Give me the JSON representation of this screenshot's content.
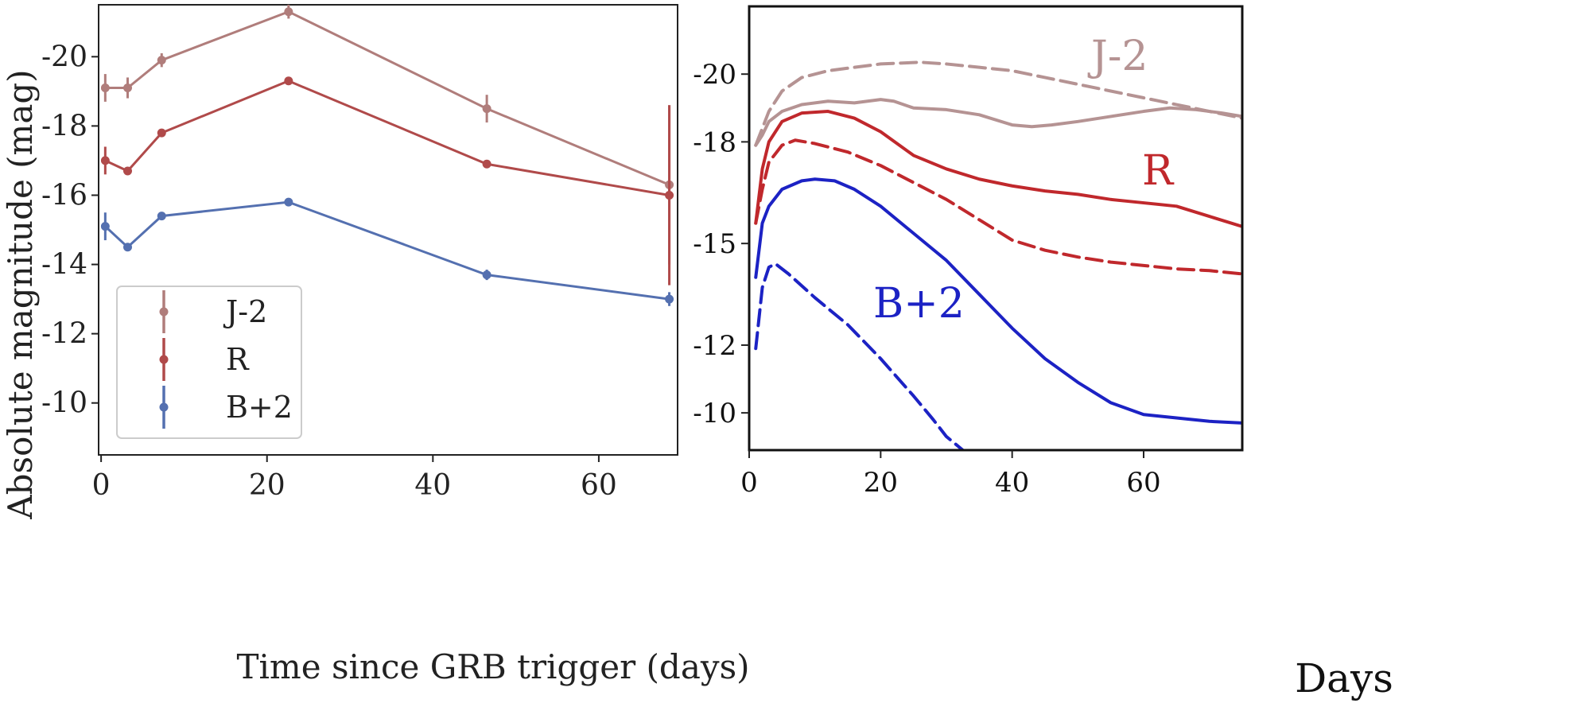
{
  "chart_data": [
    {
      "type": "line",
      "xlabel": "Time since GRB trigger (days)",
      "ylabel": "Absolute magnitude (mag)",
      "xlim": [
        -0.3,
        69.5
      ],
      "ylim": [
        -8.5,
        -21.5
      ],
      "y_inverted": true,
      "xticks": [
        0,
        20,
        40,
        60
      ],
      "yticks": [
        -10,
        -12,
        -14,
        -16,
        -18,
        -20
      ],
      "legend_position": "lower-left",
      "markers": true,
      "error_bars": true,
      "series": [
        {
          "name": "J-2",
          "color": "#b07d7b",
          "x": [
            0.5,
            3.2,
            7.3,
            22.6,
            46.5,
            68.5
          ],
          "y": [
            -19.1,
            -19.1,
            -19.9,
            -21.3,
            -18.5,
            -16.3
          ],
          "yerr": [
            0.4,
            0.3,
            0.2,
            0.2,
            0.4,
            2.3
          ]
        },
        {
          "name": "R",
          "color": "#b04a4a",
          "x": [
            0.5,
            3.2,
            7.3,
            22.6,
            46.5,
            68.5
          ],
          "y": [
            -17.0,
            -16.7,
            -17.8,
            -19.3,
            -16.9,
            -16.0
          ],
          "yerr": [
            0.4,
            0.1,
            0.1,
            0.1,
            0.1,
            2.6
          ]
        },
        {
          "name": "B+2",
          "color": "#5470b0",
          "x": [
            0.5,
            3.2,
            7.3,
            22.6,
            46.5,
            68.5
          ],
          "y": [
            -15.1,
            -14.5,
            -15.4,
            -15.8,
            -13.7,
            -13.0
          ],
          "yerr": [
            0.4,
            0.1,
            0.1,
            0.1,
            0.15,
            0.2
          ]
        }
      ]
    },
    {
      "type": "line",
      "xlabel": "Days",
      "ylabel": "",
      "xlim": [
        0,
        75
      ],
      "ylim": [
        -8.9,
        -22.0
      ],
      "y_inverted": true,
      "xticks": [
        0,
        20,
        40,
        60
      ],
      "ytick_values": [
        -20,
        -18,
        -15,
        -12,
        -10
      ],
      "ytick_labels": [
        "-20",
        "-18",
        "-15",
        "-12",
        "-10"
      ],
      "legend_position": "inline",
      "series": [
        {
          "name": "J-2",
          "label_shown": "J-2",
          "color": "#b59393",
          "style": "dashed",
          "x": [
            1,
            2,
            3,
            5,
            8,
            12,
            16,
            20,
            26,
            30,
            35,
            40,
            45,
            50,
            55,
            60,
            65,
            70,
            75
          ],
          "y": [
            -17.9,
            -18.4,
            -18.9,
            -19.5,
            -19.9,
            -20.1,
            -20.2,
            -20.3,
            -20.35,
            -20.3,
            -20.2,
            -20.1,
            -19.9,
            -19.7,
            -19.5,
            -19.3,
            -19.1,
            -18.9,
            -18.7
          ]
        },
        {
          "name": "J-2 solid",
          "color": "#b59393",
          "style": "solid",
          "x": [
            1,
            2,
            3,
            5,
            8,
            12,
            16,
            20,
            22,
            25,
            30,
            35,
            40,
            43,
            46,
            50,
            55,
            60,
            64,
            68,
            72,
            75
          ],
          "y": [
            -17.9,
            -18.2,
            -18.6,
            -18.9,
            -19.1,
            -19.2,
            -19.15,
            -19.25,
            -19.2,
            -19.0,
            -18.95,
            -18.8,
            -18.5,
            -18.45,
            -18.5,
            -18.6,
            -18.75,
            -18.9,
            -19.0,
            -18.95,
            -18.85,
            -18.75
          ]
        },
        {
          "name": "R",
          "label_shown": "R",
          "color": "#c0282c",
          "style": "solid",
          "x": [
            1,
            2,
            3,
            5,
            8,
            12,
            16,
            20,
            25,
            30,
            35,
            40,
            45,
            50,
            55,
            60,
            65,
            70,
            75
          ],
          "y": [
            -15.6,
            -17.2,
            -18.0,
            -18.6,
            -18.85,
            -18.9,
            -18.7,
            -18.3,
            -17.6,
            -17.2,
            -16.9,
            -16.7,
            -16.55,
            -16.45,
            -16.3,
            -16.2,
            -16.1,
            -15.8,
            -15.5
          ]
        },
        {
          "name": "R dashed",
          "color": "#c0282c",
          "style": "dashed",
          "x": [
            1,
            2,
            3,
            5,
            7,
            10,
            15,
            20,
            25,
            30,
            35,
            40,
            45,
            50,
            55,
            60,
            65,
            70,
            75
          ],
          "y": [
            -15.6,
            -16.6,
            -17.4,
            -17.9,
            -18.05,
            -17.95,
            -17.7,
            -17.3,
            -16.8,
            -16.3,
            -15.7,
            -15.1,
            -14.8,
            -14.6,
            -14.45,
            -14.35,
            -14.25,
            -14.2,
            -14.1
          ]
        },
        {
          "name": "B+2",
          "label_shown": "B+2",
          "color": "#1c22c4",
          "style": "solid",
          "x": [
            1,
            2,
            3,
            5,
            8,
            10,
            13,
            16,
            20,
            25,
            30,
            35,
            40,
            45,
            50,
            55,
            60,
            65,
            70,
            75
          ],
          "y": [
            -14.0,
            -15.6,
            -16.1,
            -16.6,
            -16.85,
            -16.9,
            -16.85,
            -16.6,
            -16.1,
            -15.3,
            -14.5,
            -13.5,
            -12.5,
            -11.6,
            -10.9,
            -10.3,
            -9.95,
            -9.85,
            -9.75,
            -9.7
          ]
        },
        {
          "name": "B+2 dashed",
          "color": "#1c22c4",
          "style": "dashed",
          "x": [
            1,
            2,
            3,
            4,
            6,
            10,
            15,
            20,
            25,
            28,
            30,
            32.5
          ],
          "y": [
            -11.9,
            -13.7,
            -14.3,
            -14.4,
            -14.1,
            -13.4,
            -12.6,
            -11.6,
            -10.5,
            -9.8,
            -9.3,
            -8.9
          ]
        }
      ]
    }
  ]
}
